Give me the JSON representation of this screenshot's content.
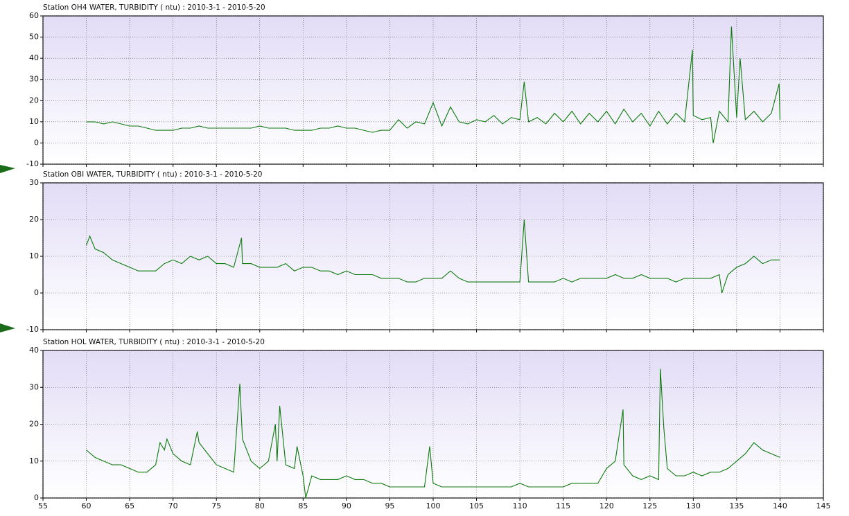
{
  "chart_data": [
    {
      "type": "line",
      "title": "Station OH4 WATER, TURBIDITY ( ntu) : 2010-3-1 - 2010-5-20",
      "color": "#0b7a0b",
      "xlim": [
        55,
        145
      ],
      "xticks": [
        55,
        60,
        65,
        70,
        75,
        80,
        85,
        90,
        95,
        100,
        105,
        110,
        115,
        120,
        125,
        130,
        135,
        140,
        145
      ],
      "xtick_labels": false,
      "ylim": [
        -10,
        60
      ],
      "yticks": [
        -10,
        0,
        10,
        20,
        30,
        40,
        50,
        60
      ],
      "grid": true,
      "x": [
        60,
        61,
        62,
        63,
        64,
        65,
        66,
        67,
        68,
        69,
        70,
        71,
        72,
        73,
        74,
        75,
        76,
        77,
        78,
        79,
        80,
        81,
        82,
        83,
        84,
        85,
        86,
        87,
        88,
        89,
        90,
        91,
        92,
        93,
        94,
        95,
        96,
        97,
        98,
        99,
        100,
        101,
        102,
        103,
        104,
        105,
        106,
        107,
        108,
        109,
        110,
        110.5,
        111,
        112,
        113,
        114,
        115,
        116,
        117,
        118,
        119,
        120,
        121,
        122,
        123,
        124,
        125,
        126,
        127,
        128,
        129,
        129.9,
        130,
        131,
        132,
        132.3,
        133,
        134,
        134.4,
        135,
        135.4,
        136,
        137,
        138,
        139,
        139.9,
        140
      ],
      "values": [
        10,
        10,
        9,
        10,
        9,
        8,
        8,
        7,
        6,
        6,
        6,
        7,
        7,
        8,
        7,
        7,
        7,
        7,
        7,
        7,
        8,
        7,
        7,
        7,
        6,
        6,
        6,
        7,
        7,
        8,
        7,
        7,
        6,
        5,
        6,
        6,
        11,
        7,
        10,
        9,
        19,
        8,
        17,
        10,
        9,
        11,
        10,
        13,
        9,
        12,
        11,
        29,
        10,
        12,
        9,
        14,
        10,
        15,
        9,
        14,
        10,
        15,
        9,
        16,
        10,
        14,
        8,
        15,
        9,
        14,
        10,
        44,
        13,
        11,
        12,
        0,
        15,
        10,
        55,
        12,
        40,
        11,
        15,
        10,
        14,
        28,
        11
      ]
    },
    {
      "type": "line",
      "title": "Station OBI WATER, TURBIDITY ( ntu) : 2010-3-1 - 2010-5-20",
      "color": "#0b7a0b",
      "xlim": [
        55,
        145
      ],
      "xticks": [
        55,
        60,
        65,
        70,
        75,
        80,
        85,
        90,
        95,
        100,
        105,
        110,
        115,
        120,
        125,
        130,
        135,
        140,
        145
      ],
      "xtick_labels": false,
      "ylim": [
        -10,
        30
      ],
      "yticks": [
        -10,
        0,
        10,
        20,
        30
      ],
      "grid": true,
      "x": [
        60,
        60.4,
        61,
        62,
        63,
        64,
        65,
        66,
        67,
        68,
        69,
        70,
        71,
        72,
        73,
        74,
        75,
        76,
        77,
        77.9,
        78,
        79,
        80,
        81,
        82,
        83,
        84,
        85,
        86,
        87,
        88,
        89,
        90,
        91,
        92,
        93,
        94,
        95,
        96,
        97,
        98,
        99,
        100,
        101,
        102,
        103,
        104,
        105,
        106,
        107,
        108,
        109,
        110,
        110.5,
        111,
        112,
        113,
        114,
        115,
        116,
        117,
        118,
        119,
        120,
        121,
        122,
        123,
        124,
        125,
        126,
        127,
        128,
        129,
        130,
        131,
        132,
        133,
        133.3,
        134,
        135,
        136,
        137,
        138,
        139,
        140
      ],
      "values": [
        13,
        15.5,
        12,
        11,
        9,
        8,
        7,
        6,
        6,
        6,
        8,
        9,
        8,
        10,
        9,
        10,
        8,
        8,
        7,
        15,
        8,
        8,
        7,
        7,
        7,
        8,
        6,
        7,
        7,
        6,
        6,
        5,
        6,
        5,
        5,
        5,
        4,
        4,
        4,
        3,
        3,
        4,
        4,
        4,
        6,
        4,
        3,
        3,
        3,
        3,
        3,
        3,
        3,
        20,
        3,
        3,
        3,
        3,
        4,
        3,
        4,
        4,
        4,
        4,
        5,
        4,
        4,
        5,
        4,
        4,
        4,
        3,
        4,
        4,
        4,
        4,
        5,
        0,
        5,
        7,
        8,
        10,
        8,
        9,
        9
      ]
    },
    {
      "type": "line",
      "title": "Station HOL WATER, TURBIDITY ( ntu) : 2010-3-1 - 2010-5-20",
      "color": "#0b7a0b",
      "xlim": [
        55,
        145
      ],
      "xticks": [
        55,
        60,
        65,
        70,
        75,
        80,
        85,
        90,
        95,
        100,
        105,
        110,
        115,
        120,
        125,
        130,
        135,
        140,
        145
      ],
      "xtick_labels": true,
      "ylim": [
        0,
        40
      ],
      "yticks": [
        0,
        10,
        20,
        30,
        40
      ],
      "grid": true,
      "x": [
        60,
        61,
        62,
        63,
        64,
        65,
        66,
        67,
        68,
        68.5,
        69,
        69.3,
        70,
        71,
        72,
        72.8,
        73,
        74,
        75,
        76,
        77,
        77.7,
        78,
        79,
        80,
        81,
        81.8,
        82,
        82.3,
        83,
        84,
        84.3,
        85,
        85.3,
        86,
        87,
        88,
        89,
        90,
        91,
        92,
        93,
        94,
        95,
        96,
        97,
        98,
        99,
        99.6,
        100,
        101,
        102,
        103,
        104,
        105,
        106,
        107,
        108,
        109,
        110,
        111,
        112,
        113,
        114,
        115,
        116,
        117,
        118,
        119,
        120,
        121,
        121.9,
        122,
        123,
        124,
        125,
        126,
        126.2,
        126.6,
        127,
        128,
        129,
        130,
        131,
        132,
        133,
        134,
        135,
        136,
        137,
        138,
        139,
        140
      ],
      "values": [
        13,
        11,
        10,
        9,
        9,
        8,
        7,
        7,
        9,
        15,
        13,
        16,
        12,
        10,
        9,
        18,
        15,
        12,
        9,
        8,
        7,
        31,
        16,
        10,
        8,
        10,
        20,
        10,
        25,
        9,
        8,
        14,
        6,
        0,
        6,
        5,
        5,
        5,
        6,
        5,
        5,
        4,
        4,
        3,
        3,
        3,
        3,
        3,
        14,
        4,
        3,
        3,
        3,
        3,
        3,
        3,
        3,
        3,
        3,
        4,
        3,
        3,
        3,
        3,
        3,
        4,
        4,
        4,
        4,
        8,
        10,
        24,
        9,
        6,
        5,
        6,
        5,
        35,
        19,
        8,
        6,
        6,
        7,
        6,
        7,
        7,
        8,
        10,
        12,
        15,
        13,
        12,
        11
      ]
    }
  ]
}
